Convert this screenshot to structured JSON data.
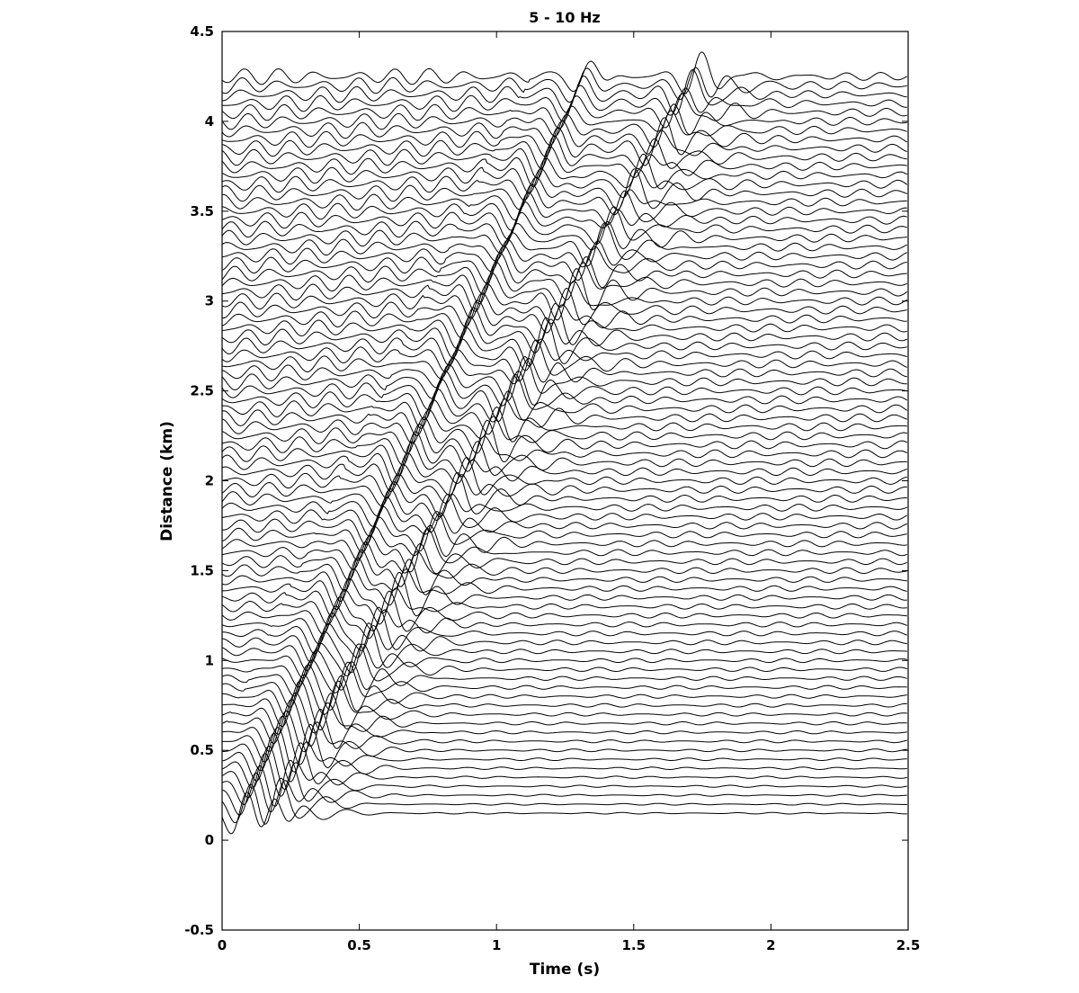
{
  "chart_data": {
    "type": "line",
    "title": "5 - 10 Hz",
    "xlabel": "Time (s)",
    "ylabel": "Distance (km)",
    "xlim": [
      0,
      2.5
    ],
    "ylim": [
      -0.5,
      4.5
    ],
    "x_ticks": [
      0,
      0.5,
      1,
      1.5,
      2,
      2.5
    ],
    "x_tick_labels": [
      "0",
      "0.5",
      "1",
      "1.5",
      "2",
      "2.5"
    ],
    "y_ticks": [
      -0.5,
      0,
      0.5,
      1,
      1.5,
      2,
      2.5,
      3,
      3.5,
      4,
      4.5
    ],
    "y_tick_labels": [
      "-0.5",
      "0",
      "0.5",
      "1",
      "1.5",
      "2",
      "2.5",
      "3",
      "3.5",
      "4",
      "4.5"
    ],
    "grid": false,
    "legend": "none",
    "line_color": "#000000",
    "traces": {
      "first_offset_km": 0.15,
      "last_offset_km": 4.25,
      "offset_spacing_km": 0.05,
      "count": 83,
      "time_start_s": 0,
      "time_end_s": 2.5,
      "wavefront_1": {
        "intercept_s": 0.02,
        "slowness_s_per_km": 0.305
      },
      "wavefront_2": {
        "intercept_s": 0.12,
        "slowness_s_per_km": 0.38
      },
      "amplitude_km": 0.13
    }
  }
}
